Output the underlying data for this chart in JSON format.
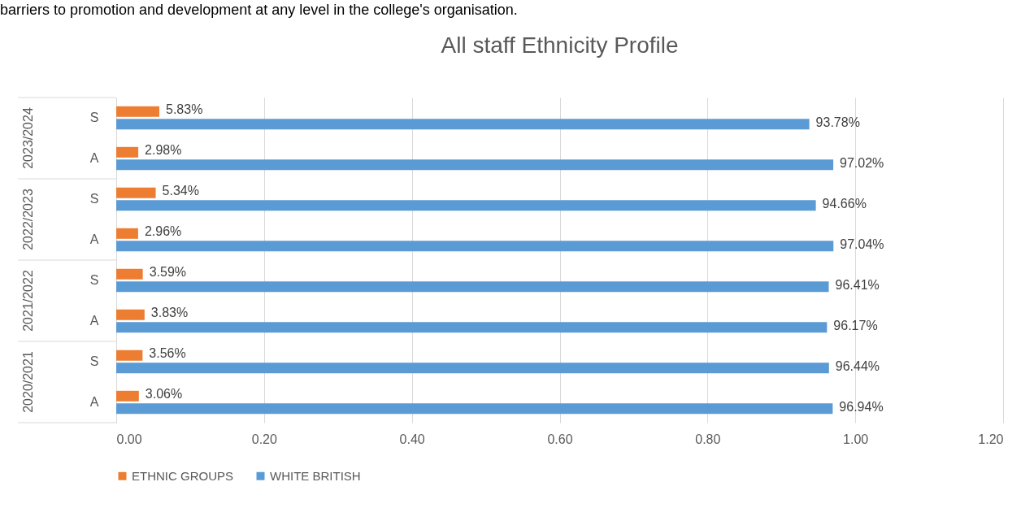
{
  "chart_data": {
    "type": "bar",
    "orientation": "horizontal",
    "title": "All staff Ethnicity Profile",
    "categories": [
      "S",
      "A",
      "S",
      "A",
      "S",
      "A",
      "S",
      "A"
    ],
    "series": [
      {
        "name": "ETHNIC GROUPS",
        "color": "#ed7d31",
        "values": [
          0.0583,
          0.0298,
          0.0534,
          0.0296,
          0.0359,
          0.0383,
          0.0356,
          0.0306
        ],
        "value_labels": [
          "5.83%",
          "2.98%",
          "5.34%",
          "2.96%",
          "3.59%",
          "3.83%",
          "3.56%",
          "3.06%"
        ]
      },
      {
        "name": "WHITE BRITISH",
        "color": "#5b9bd5",
        "values": [
          0.9378,
          0.9702,
          0.9466,
          0.9704,
          0.9641,
          0.9617,
          0.9644,
          0.9694
        ],
        "value_labels": [
          "93.78%",
          "97.02%",
          "94.66%",
          "97.04%",
          "96.41%",
          "96.17%",
          "96.44%",
          "96.94%"
        ]
      }
    ],
    "annotations": [
      "barriers to promotion and development at any level in the college's organisation.",
      "2023/2024",
      "2022/2023",
      "2021/2022",
      "2020/2021"
    ],
    "xlim": [
      0,
      1.2
    ],
    "xticks": [
      {
        "value": 0,
        "label": "0.00"
      },
      {
        "value": 0.2,
        "label": "0.20"
      },
      {
        "value": 0.4,
        "label": "0.40"
      },
      {
        "value": 0.6,
        "label": "0.60"
      },
      {
        "value": 0.8,
        "label": "0.80"
      },
      {
        "value": 1,
        "label": "1.00"
      },
      {
        "value": 1.2,
        "label": "1.20"
      }
    ],
    "grid": "x",
    "legend": "bottom"
  }
}
